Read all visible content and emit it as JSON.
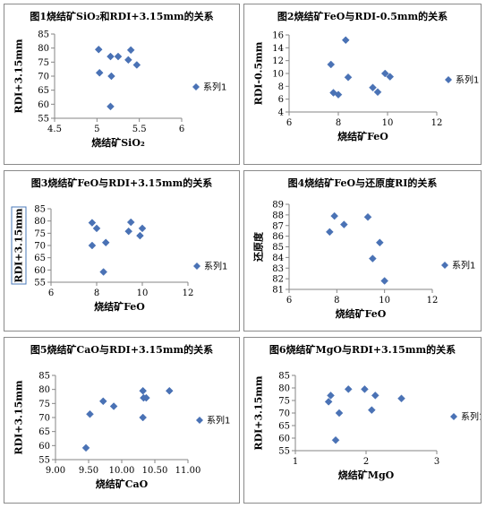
{
  "marker_color": "#4A72B5",
  "chart_data": [
    {
      "type": "scatter",
      "title": "图1烧结矿SiO₂和RDI+3.15mm的关系",
      "xlabel": "烧结矿SiO₂",
      "ylabel": "RDI+3.15mm",
      "xlim": [
        4.5,
        6
      ],
      "ylim": [
        55,
        85
      ],
      "xticks": [
        4.5,
        5,
        5.5,
        6
      ],
      "xtick_labels": [
        "4.5",
        "5",
        "5.5",
        "6"
      ],
      "yticks": [
        55,
        60,
        65,
        70,
        75,
        80,
        85
      ],
      "ytick_labels": [
        "55",
        "60",
        "65",
        "70",
        "75",
        "80",
        "85"
      ],
      "grid": false,
      "legend_position": "right",
      "series": [
        {
          "name": "系列1",
          "x": [
            5.02,
            5.03,
            5.16,
            5.17,
            5.25,
            5.37,
            5.4,
            5.47,
            5.16
          ],
          "y": [
            79.5,
            71.2,
            77.0,
            70.0,
            77.0,
            75.8,
            79.3,
            74.0,
            59.2
          ]
        }
      ]
    },
    {
      "type": "scatter",
      "title": "图2烧结矿FeO与RDI-0.5mm的关系",
      "xlabel": "烧结矿FeO",
      "ylabel": "RDI-0.5mm",
      "xlim": [
        6,
        12
      ],
      "ylim": [
        4,
        16
      ],
      "xticks": [
        6,
        8,
        10,
        12
      ],
      "xtick_labels": [
        "6",
        "8",
        "10",
        "12"
      ],
      "yticks": [
        4,
        6,
        8,
        10,
        12,
        14,
        16
      ],
      "ytick_labels": [
        "4",
        "6",
        "8",
        "10",
        "12",
        "14",
        "16"
      ],
      "grid": false,
      "legend_position": "right",
      "series": [
        {
          "name": "系列1",
          "x": [
            8.3,
            7.7,
            8.4,
            7.8,
            8.0,
            9.4,
            9.6,
            9.9,
            10.1
          ],
          "y": [
            15.2,
            11.4,
            9.4,
            7.0,
            6.7,
            7.8,
            7.1,
            10.0,
            9.5
          ]
        }
      ]
    },
    {
      "type": "scatter",
      "title": "图3烧结矿FeO与RDI+3.15mm的关系",
      "xlabel": "烧结矿FeO",
      "ylabel": "RDI+3.15mm",
      "xlim": [
        6,
        12
      ],
      "ylim": [
        55,
        85
      ],
      "xticks": [
        6,
        8,
        10,
        12
      ],
      "xtick_labels": [
        "6",
        "8",
        "10",
        "12"
      ],
      "yticks": [
        55,
        60,
        65,
        70,
        75,
        80,
        85
      ],
      "ytick_labels": [
        "55",
        "60",
        "65",
        "70",
        "75",
        "80",
        "85"
      ],
      "grid": false,
      "legend_position": "right",
      "series": [
        {
          "name": "系列1",
          "x": [
            7.8,
            8.0,
            7.8,
            8.4,
            8.3,
            9.4,
            9.5,
            9.9,
            10.0
          ],
          "y": [
            79.3,
            77.0,
            70.0,
            71.2,
            59.2,
            75.8,
            79.5,
            74.0,
            77.0
          ]
        }
      ]
    },
    {
      "type": "scatter",
      "title": "图4烧结矿FeO与还原度RI的关系",
      "xlabel": "烧结矿FeO",
      "ylabel": "还原度",
      "xlim": [
        6,
        12
      ],
      "ylim": [
        81,
        89
      ],
      "xticks": [
        6,
        8,
        10,
        12
      ],
      "xtick_labels": [
        "6",
        "8",
        "10",
        "12"
      ],
      "yticks": [
        81,
        82,
        83,
        84,
        85,
        86,
        87,
        88,
        89
      ],
      "ytick_labels": [
        "81",
        "82",
        "83",
        "84",
        "85",
        "86",
        "87",
        "88",
        "89"
      ],
      "grid": false,
      "legend_position": "right",
      "series": [
        {
          "name": "系列1",
          "x": [
            7.9,
            8.3,
            7.7,
            9.3,
            9.8,
            9.5,
            10.0
          ],
          "y": [
            87.9,
            87.1,
            86.4,
            87.8,
            85.4,
            83.9,
            81.8
          ]
        }
      ]
    },
    {
      "type": "scatter",
      "title": "图5烧结矿CaO与RDI+3.15mm的关系",
      "xlabel": "烧结矿CaO",
      "ylabel": "RDI+3.15mm",
      "xlim": [
        9.0,
        11.0
      ],
      "ylim": [
        55,
        85
      ],
      "xticks": [
        9.0,
        9.5,
        10.0,
        10.5,
        11.0
      ],
      "xtick_labels": [
        "9.00",
        "9.50",
        "10.00",
        "10.50",
        "11.00"
      ],
      "yticks": [
        55,
        60,
        65,
        70,
        75,
        80,
        85
      ],
      "ytick_labels": [
        "55",
        "60",
        "65",
        "70",
        "75",
        "80",
        "85"
      ],
      "grid": false,
      "legend_position": "right",
      "series": [
        {
          "name": "系列1",
          "x": [
            9.46,
            9.52,
            9.72,
            9.88,
            10.32,
            10.33,
            10.37,
            10.32,
            10.72
          ],
          "y": [
            59.2,
            71.2,
            75.8,
            74.0,
            79.5,
            77.0,
            77.0,
            70.0,
            79.5
          ]
        }
      ]
    },
    {
      "type": "scatter",
      "title": "图6烧结矿MgO与RDI+3.15mm的关系",
      "xlabel": "烧结矿MgO",
      "ylabel": "RDI+3.15mm",
      "xlim": [
        1,
        3
      ],
      "ylim": [
        55,
        85
      ],
      "xticks": [
        1,
        2,
        3
      ],
      "xtick_labels": [
        "1",
        "2",
        "3"
      ],
      "yticks": [
        55,
        60,
        65,
        70,
        75,
        80,
        85
      ],
      "ytick_labels": [
        "55",
        "60",
        "65",
        "70",
        "75",
        "80",
        "85"
      ],
      "grid": false,
      "legend_position": "right",
      "series": [
        {
          "name": "系列1",
          "x": [
            1.47,
            1.5,
            1.57,
            1.62,
            1.75,
            1.98,
            2.08,
            2.13,
            2.5
          ],
          "y": [
            74.5,
            77.0,
            59.2,
            70.0,
            79.5,
            79.5,
            71.2,
            77.0,
            75.8
          ]
        }
      ]
    }
  ]
}
